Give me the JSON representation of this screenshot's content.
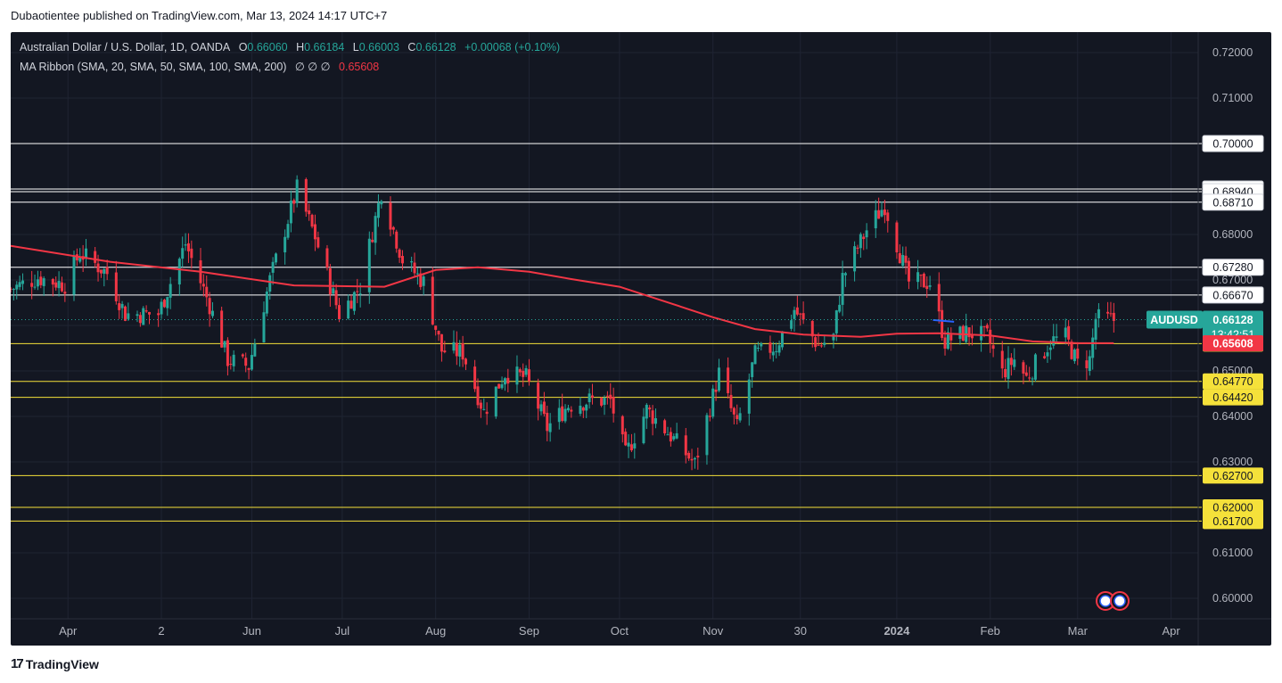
{
  "header": {
    "publisher_line": "Dubaotientee published on TradingView.com, Mar 13, 2024 14:17 UTC+7"
  },
  "legend": {
    "symbol": "Australian Dollar / U.S. Dollar, 1D, OANDA",
    "o_label": "O",
    "o_value": "0.66060",
    "h_label": "H",
    "h_value": "0.66184",
    "l_label": "L",
    "l_value": "0.66003",
    "c_label": "C",
    "c_value": "0.66128",
    "change": "+0.00068 (+0.10%)",
    "indicator": "MA Ribbon (SMA, 20, SMA, 50, SMA, 100, SMA, 200)",
    "indicator_values": "∅ ∅ ∅",
    "indicator_last": "0.65608"
  },
  "footer": {
    "brand": "TradingView"
  },
  "colors": {
    "background": "#131722",
    "up": "#26a69a",
    "down": "#f23645",
    "ma": "#f23645",
    "yellow_line": "#f5e13a",
    "white_line": "#ffffff"
  },
  "chart_data": {
    "type": "candlestick",
    "symbol_label": "AUDUSD",
    "last_price": "0.66128",
    "countdown": "13:42:51",
    "ma_value": "0.65608",
    "ylim": [
      0.5955,
      0.7245
    ],
    "y_ticks": [
      "0.72000",
      "0.71000",
      "0.70000",
      "0.69000",
      "0.68000",
      "0.67000",
      "0.66000",
      "0.65000",
      "0.64000",
      "0.63000",
      "0.62000",
      "0.61000",
      "0.60000"
    ],
    "x_ticks": [
      {
        "label": "Apr",
        "date": "2023-04-01"
      },
      {
        "label": "2",
        "date": "2023-05-02"
      },
      {
        "label": "Jun",
        "date": "2023-06-01"
      },
      {
        "label": "Jul",
        "date": "2023-07-01"
      },
      {
        "label": "Aug",
        "date": "2023-08-01"
      },
      {
        "label": "Sep",
        "date": "2023-09-01"
      },
      {
        "label": "Oct",
        "date": "2023-10-01"
      },
      {
        "label": "Nov",
        "date": "2023-11-01"
      },
      {
        "label": "30",
        "date": "2023-11-30"
      },
      {
        "label": "2024",
        "date": "2024-01-01"
      },
      {
        "label": "Feb",
        "date": "2024-02-01"
      },
      {
        "label": "Mar",
        "date": "2024-03-01"
      },
      {
        "label": "Apr",
        "date": "2024-04-01"
      }
    ],
    "x_range": [
      "2023-03-13",
      "2024-04-10"
    ],
    "white_levels": [
      0.7,
      0.69,
      0.6894,
      0.6871,
      0.6728,
      0.6667
    ],
    "white_level_labels": [
      "0.70000",
      "0.69000",
      "0.68940",
      "0.68710",
      "0.67280",
      "0.66670"
    ],
    "yellow_levels": [
      0.656,
      0.6477,
      0.6442,
      0.627,
      0.62,
      0.617
    ],
    "yellow_level_labels": [
      "0.65600",
      "0.64770",
      "0.64420",
      "0.62700",
      "0.62000",
      "0.61700"
    ],
    "ma200": [
      [
        "2023-03-13",
        0.6775
      ],
      [
        "2023-04-15",
        0.674
      ],
      [
        "2023-05-15",
        0.6718
      ],
      [
        "2023-06-15",
        0.6688
      ],
      [
        "2023-07-15",
        0.6685
      ],
      [
        "2023-08-01",
        0.6722
      ],
      [
        "2023-08-15",
        0.6728
      ],
      [
        "2023-09-01",
        0.6718
      ],
      [
        "2023-09-15",
        0.6702
      ],
      [
        "2023-10-01",
        0.6685
      ],
      [
        "2023-10-15",
        0.6655
      ],
      [
        "2023-11-01",
        0.6618
      ],
      [
        "2023-11-15",
        0.6592
      ],
      [
        "2023-12-01",
        0.658
      ],
      [
        "2023-12-20",
        0.6575
      ],
      [
        "2024-01-01",
        0.6582
      ],
      [
        "2024-01-15",
        0.6583
      ],
      [
        "2024-02-01",
        0.6578
      ],
      [
        "2024-02-15",
        0.6565
      ],
      [
        "2024-03-01",
        0.6561
      ],
      [
        "2024-03-13",
        0.6561
      ]
    ],
    "close_path": [
      [
        "2023-03-13",
        0.668
      ],
      [
        "2023-03-22",
        0.6705
      ],
      [
        "2023-03-31",
        0.669
      ],
      [
        "2023-04-05",
        0.676
      ],
      [
        "2023-04-14",
        0.6715
      ],
      [
        "2023-04-20",
        0.6625
      ],
      [
        "2023-05-01",
        0.6625
      ],
      [
        "2023-05-10",
        0.678
      ],
      [
        "2023-05-18",
        0.6645
      ],
      [
        "2023-05-24",
        0.6525
      ],
      [
        "2023-05-31",
        0.651
      ],
      [
        "2023-06-07",
        0.67
      ],
      [
        "2023-06-16",
        0.69
      ],
      [
        "2023-06-22",
        0.6795
      ],
      [
        "2023-06-30",
        0.6625
      ],
      [
        "2023-07-07",
        0.6685
      ],
      [
        "2023-07-14",
        0.6895
      ],
      [
        "2023-07-21",
        0.6745
      ],
      [
        "2023-07-28",
        0.6695
      ],
      [
        "2023-08-03",
        0.6545
      ],
      [
        "2023-08-10",
        0.654
      ],
      [
        "2023-08-17",
        0.641
      ],
      [
        "2023-08-24",
        0.6495
      ],
      [
        "2023-08-31",
        0.6485
      ],
      [
        "2023-09-07",
        0.6375
      ],
      [
        "2023-09-14",
        0.6425
      ],
      [
        "2023-09-21",
        0.6435
      ],
      [
        "2023-09-28",
        0.6435
      ],
      [
        "2023-10-03",
        0.6315
      ],
      [
        "2023-10-10",
        0.6415
      ],
      [
        "2023-10-17",
        0.6365
      ],
      [
        "2023-10-26",
        0.6295
      ],
      [
        "2023-11-03",
        0.6495
      ],
      [
        "2023-11-09",
        0.6375
      ],
      [
        "2023-11-15",
        0.6535
      ],
      [
        "2023-11-22",
        0.6555
      ],
      [
        "2023-11-28",
        0.6635
      ],
      [
        "2023-12-06",
        0.6555
      ],
      [
        "2023-12-11",
        0.6575
      ],
      [
        "2023-12-14",
        0.6705
      ],
      [
        "2023-12-22",
        0.681
      ],
      [
        "2023-12-28",
        0.6865
      ],
      [
        "2024-01-05",
        0.6695
      ],
      [
        "2024-01-12",
        0.6695
      ],
      [
        "2024-01-17",
        0.6565
      ],
      [
        "2024-01-24",
        0.6585
      ],
      [
        "2024-01-31",
        0.6575
      ],
      [
        "2024-02-05",
        0.6495
      ],
      [
        "2024-02-09",
        0.6525
      ],
      [
        "2024-02-13",
        0.6485
      ],
      [
        "2024-02-21",
        0.6565
      ],
      [
        "2024-02-26",
        0.6575
      ],
      [
        "2024-03-01",
        0.6515
      ],
      [
        "2024-03-05",
        0.6525
      ],
      [
        "2024-03-07",
        0.6615
      ],
      [
        "2024-03-13",
        0.6612
      ]
    ],
    "candle_start": "2023-03-13",
    "candle_end": "2024-03-13"
  }
}
